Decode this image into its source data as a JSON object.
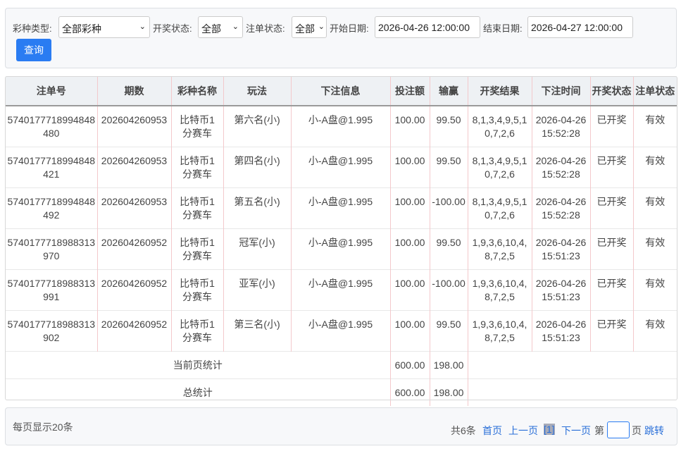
{
  "filters": {
    "lottery_type_label": "彩种类型:",
    "lottery_type_value": "全部彩种",
    "draw_status_label": "开奖状态:",
    "draw_status_value": "全部",
    "bet_status_label": "注单状态:",
    "bet_status_value": "全部",
    "start_date_label": "开始日期:",
    "start_date_value": "2026-04-26 12:00:00",
    "end_date_label": "结束日期:",
    "end_date_value": "2026-04-27 12:00:00",
    "query_button": "查询"
  },
  "table": {
    "headers": [
      "注单号",
      "期数",
      "彩种名称",
      "玩法",
      "下注信息",
      "投注额",
      "输赢",
      "开奖结果",
      "下注时间",
      "开奖状态",
      "注单状态"
    ],
    "rows": [
      [
        "5740177718994848480",
        "202604260953",
        "比特币1分赛车",
        "第六名(小)",
        "小-A盘@1.995",
        "100.00",
        "99.50",
        "8,1,3,4,9,5,10,7,2,6",
        "2026-04-26 15:52:28",
        "已开奖",
        "有效"
      ],
      [
        "5740177718994848421",
        "202604260953",
        "比特币1分赛车",
        "第四名(小)",
        "小-A盘@1.995",
        "100.00",
        "99.50",
        "8,1,3,4,9,5,10,7,2,6",
        "2026-04-26 15:52:28",
        "已开奖",
        "有效"
      ],
      [
        "5740177718994848492",
        "202604260953",
        "比特币1分赛车",
        "第五名(小)",
        "小-A盘@1.995",
        "100.00",
        "-100.00",
        "8,1,3,4,9,5,10,7,2,6",
        "2026-04-26 15:52:28",
        "已开奖",
        "有效"
      ],
      [
        "5740177718988313970",
        "202604260952",
        "比特币1分赛车",
        "冠军(小)",
        "小-A盘@1.995",
        "100.00",
        "99.50",
        "1,9,3,6,10,4,8,7,2,5",
        "2026-04-26 15:51:23",
        "已开奖",
        "有效"
      ],
      [
        "5740177718988313991",
        "202604260952",
        "比特币1分赛车",
        "亚军(小)",
        "小-A盘@1.995",
        "100.00",
        "-100.00",
        "1,9,3,6,10,4,8,7,2,5",
        "2026-04-26 15:51:23",
        "已开奖",
        "有效"
      ],
      [
        "5740177718988313902",
        "202604260952",
        "比特币1分赛车",
        "第三名(小)",
        "小-A盘@1.995",
        "100.00",
        "99.50",
        "1,9,3,6,10,4,8,7,2,5",
        "2026-04-26 15:51:23",
        "已开奖",
        "有效"
      ]
    ],
    "page_summary": {
      "label": "当前页统计",
      "bet": "600.00",
      "win": "198.00"
    },
    "total_summary": {
      "label": "总统计",
      "bet": "600.00",
      "win": "198.00"
    }
  },
  "pager": {
    "per_page": "每页显示20条",
    "total": "共6条",
    "first": "首页",
    "prev": "上一页",
    "current": "[1]",
    "next": "下一页",
    "page_prefix": "第",
    "page_suffix": "页",
    "jump": "跳转"
  }
}
